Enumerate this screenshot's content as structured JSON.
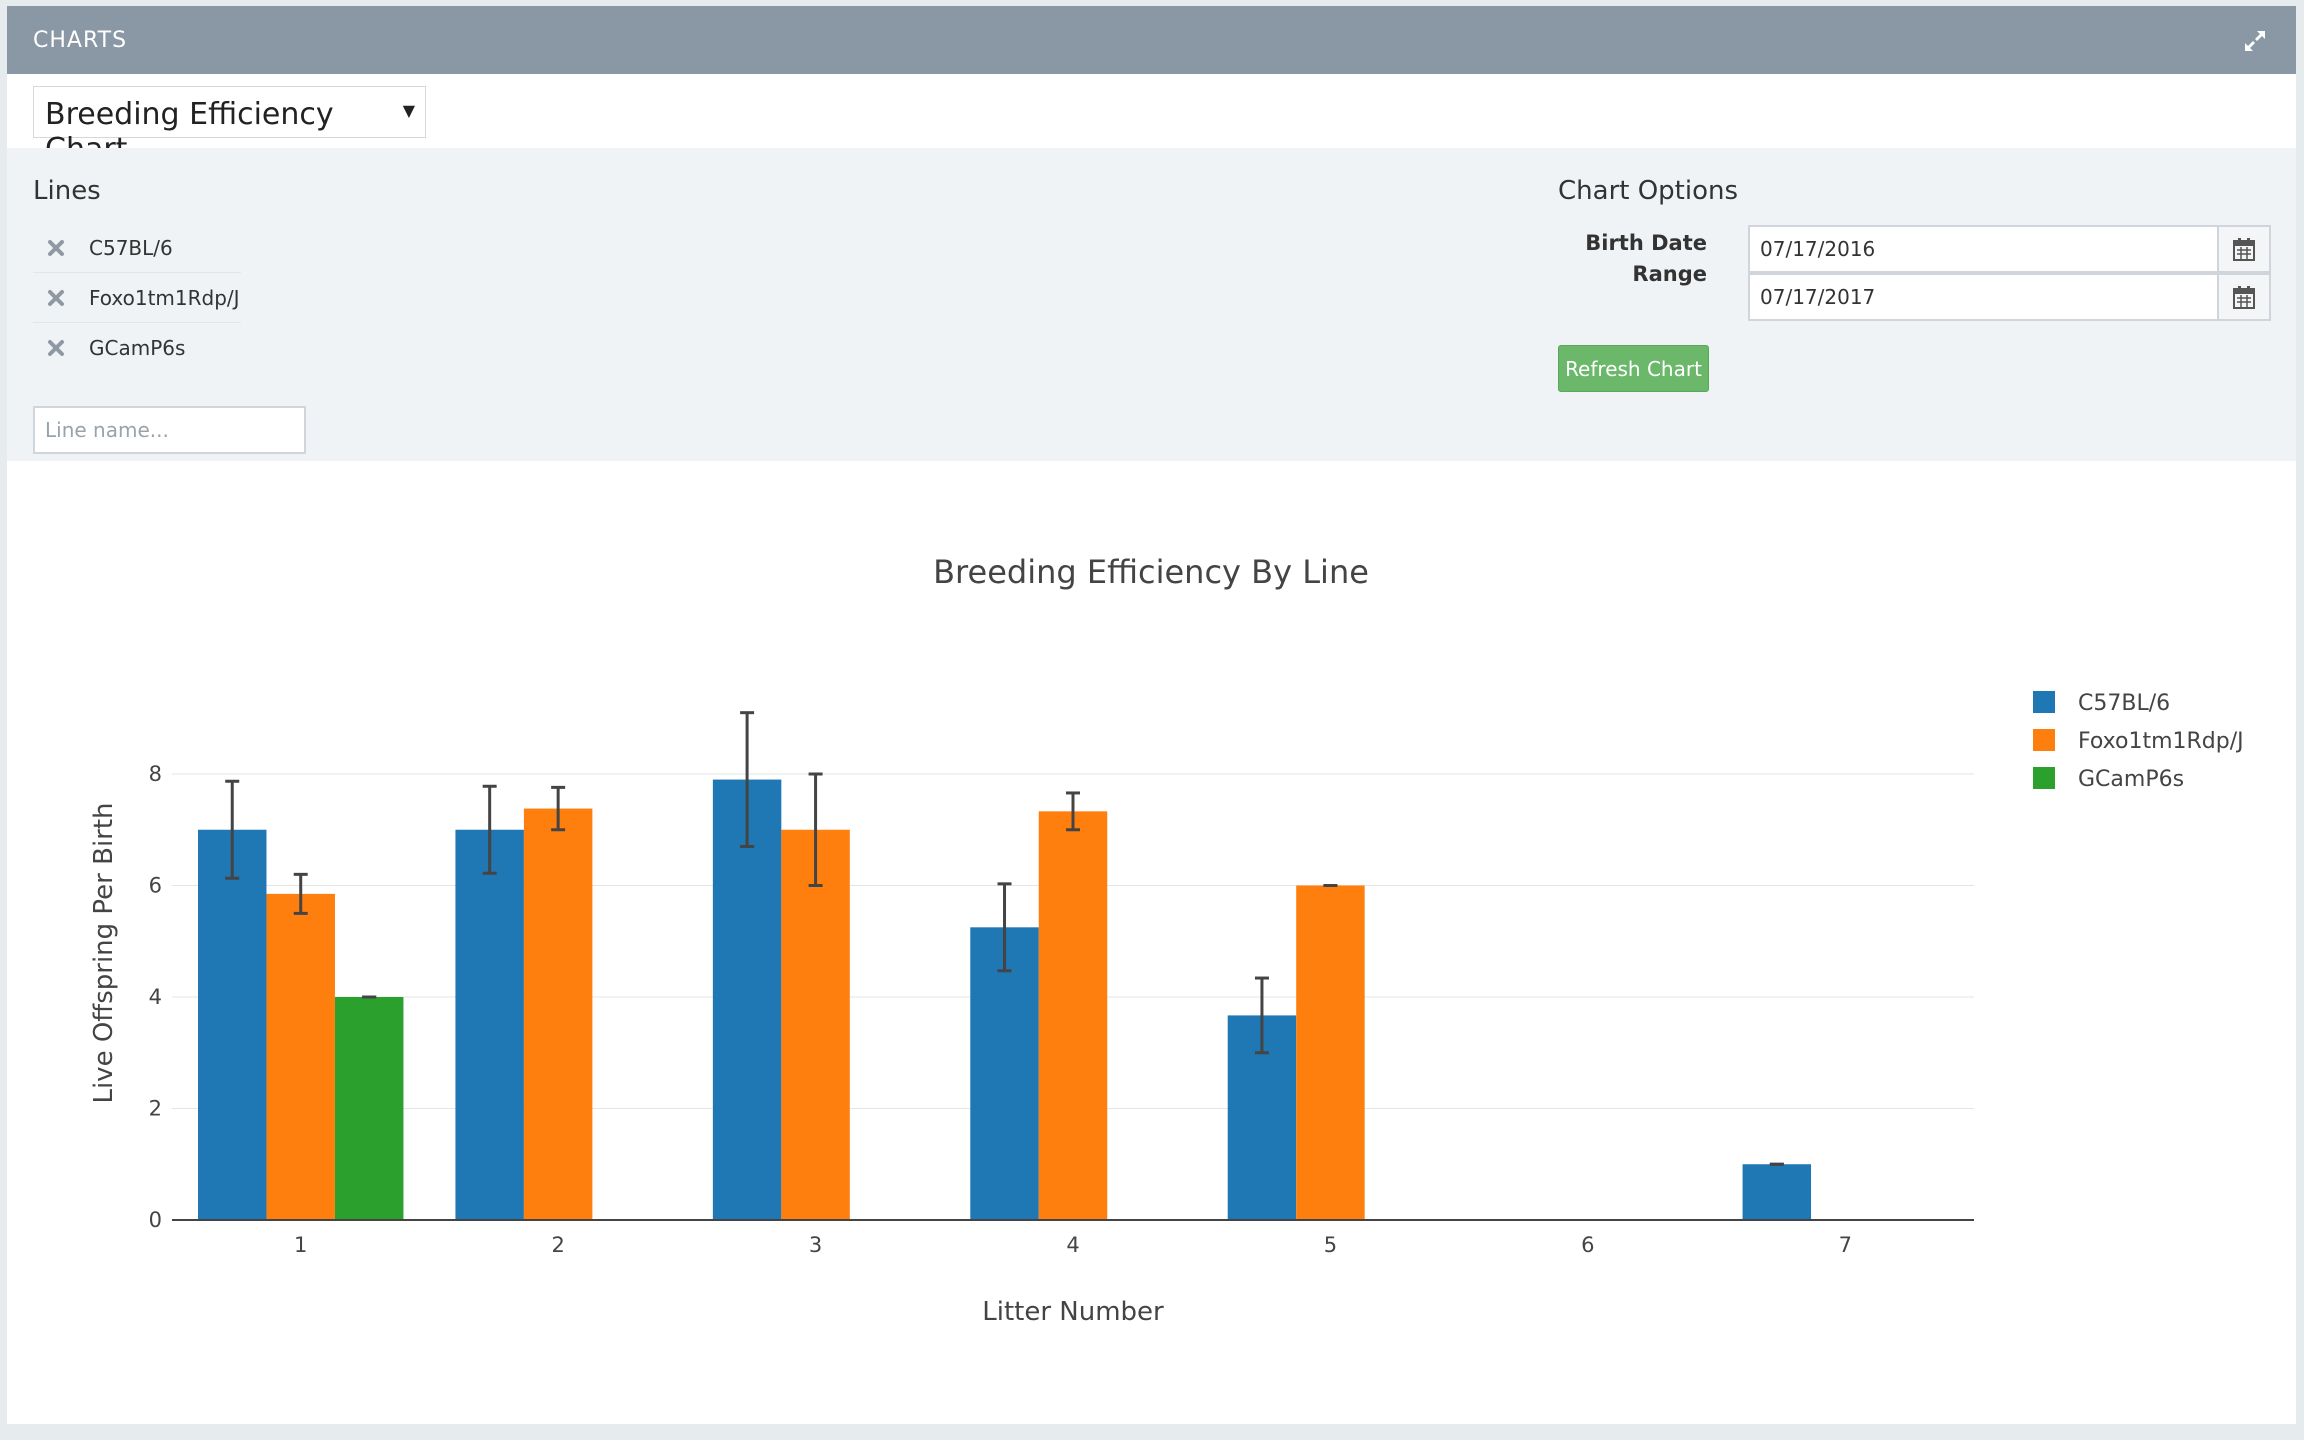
{
  "header": {
    "title": "CHARTS",
    "expand_icon": "expand-arrows-icon"
  },
  "chart_selector": {
    "selected": "Breeding Efficiency Chart"
  },
  "lines_panel": {
    "heading": "Lines",
    "items": [
      {
        "label": "C57BL/6"
      },
      {
        "label": "Foxo1tm1Rdp/J"
      },
      {
        "label": "GCamP6s"
      }
    ],
    "input_placeholder": "Line name..."
  },
  "options_panel": {
    "heading": "Chart Options",
    "birth_date_label": "Birth Date Range",
    "date_from": "07/17/2016",
    "date_to": "07/17/2017",
    "refresh_label": "Refresh Chart"
  },
  "chart_data": {
    "type": "bar",
    "title": "Breeding Efficiency By Line",
    "xlabel": "Litter Number",
    "ylabel": "Live Offspring Per Birth",
    "categories": [
      "1",
      "2",
      "3",
      "4",
      "5",
      "6",
      "7"
    ],
    "ylim": [
      0,
      8
    ],
    "yticks": [
      0,
      2,
      4,
      6,
      8
    ],
    "grid": true,
    "legend": "right",
    "series": [
      {
        "name": "C57BL/6",
        "color": "#1f77b4",
        "values": [
          7,
          7,
          7.9,
          5.25,
          3.67,
          null,
          1
        ],
        "errors": [
          0.87,
          0.78,
          1.2,
          0.78,
          0.67,
          null,
          0
        ]
      },
      {
        "name": "Foxo1tm1Rdp/J",
        "color": "#ff7f0e",
        "values": [
          5.85,
          7.38,
          7,
          7.33,
          6,
          null,
          null
        ],
        "errors": [
          0.35,
          0.38,
          1,
          0.33,
          0,
          null,
          null
        ]
      },
      {
        "name": "GCamP6s",
        "color": "#2ca02c",
        "values": [
          4,
          null,
          null,
          null,
          null,
          null,
          null
        ],
        "errors": [
          0,
          null,
          null,
          null,
          null,
          null,
          null
        ]
      }
    ]
  }
}
